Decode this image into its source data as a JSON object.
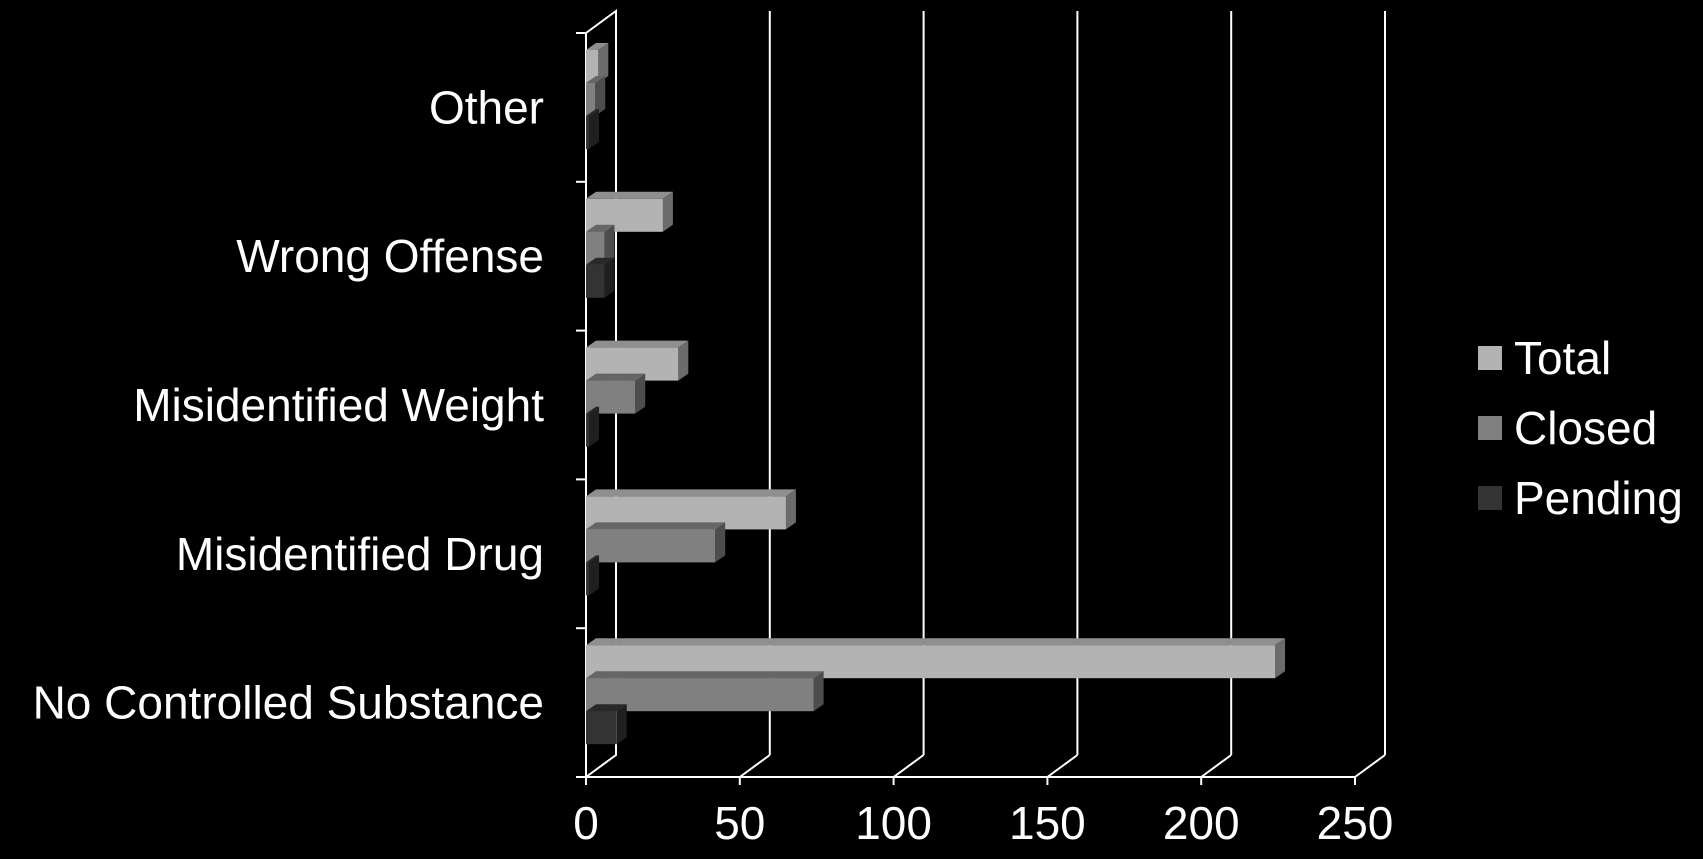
{
  "chart_data": {
    "type": "bar",
    "orientation": "horizontal",
    "style": "3d-clustered",
    "categories": [
      "Other",
      "Wrong Offense",
      "Misidentified Weight",
      "Misidentified Drug",
      "No Controlled Substance"
    ],
    "series": [
      {
        "name": "Total",
        "color": "#b3b3b3",
        "values": [
          4,
          25,
          30,
          65,
          224
        ]
      },
      {
        "name": "Closed",
        "color": "#808080",
        "values": [
          3,
          6,
          16,
          42,
          74
        ]
      },
      {
        "name": "Pending",
        "color": "#333333",
        "values": [
          1,
          6,
          1,
          1,
          10
        ]
      }
    ],
    "xlim": [
      0,
      250
    ],
    "xticks": [
      "0",
      "50",
      "100",
      "150",
      "200",
      "250"
    ],
    "grid": true,
    "legend": "right",
    "background": "#000000"
  }
}
